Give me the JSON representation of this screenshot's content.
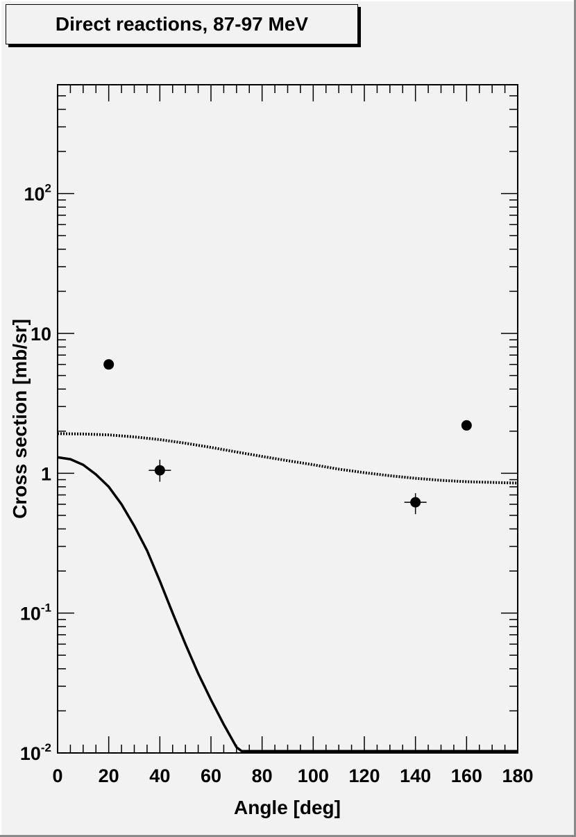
{
  "chart_data": {
    "type": "scatter",
    "title": "Direct reactions, 87-97 MeV",
    "xlabel": "Angle [deg]",
    "ylabel": "Cross section [mb/sr]",
    "xlim": [
      0,
      180
    ],
    "ylim": [
      0.01,
      600
    ],
    "yscale": "log",
    "grid": false,
    "x_ticks": [
      0,
      20,
      40,
      60,
      80,
      100,
      120,
      140,
      160,
      180
    ],
    "x_tick_labels": [
      "0",
      "20",
      "40",
      "60",
      "80",
      "100",
      "120",
      "140",
      "160",
      "180"
    ],
    "y_ticks": [
      {
        "value": 0.01,
        "base": "10",
        "exp": "-2"
      },
      {
        "value": 0.1,
        "base": "10",
        "exp": "-1"
      },
      {
        "value": 1,
        "base": "1",
        "exp": ""
      },
      {
        "value": 10,
        "base": "10",
        "exp": ""
      },
      {
        "value": 100,
        "base": "10",
        "exp": "2"
      }
    ],
    "points": [
      {
        "x": 20,
        "y": 6.0,
        "err_low": 0.0,
        "err_high": 0.0
      },
      {
        "x": 40,
        "y": 1.05,
        "err_low": 0.18,
        "err_high": 0.2
      },
      {
        "x": 140,
        "y": 0.62,
        "err_low": 0.11,
        "err_high": 0.1
      },
      {
        "x": 160,
        "y": 2.2,
        "err_low": 0.0,
        "err_high": 0.0
      }
    ],
    "curves": [
      {
        "style": "dotted",
        "x": [
          0,
          10,
          20,
          30,
          40,
          50,
          60,
          70,
          80,
          90,
          100,
          110,
          120,
          130,
          140,
          150,
          160,
          170,
          180
        ],
        "y": [
          1.92,
          1.91,
          1.88,
          1.82,
          1.74,
          1.64,
          1.53,
          1.42,
          1.32,
          1.23,
          1.15,
          1.07,
          1.01,
          0.96,
          0.92,
          0.89,
          0.87,
          0.86,
          0.85
        ]
      },
      {
        "style": "solid",
        "x": [
          0,
          5,
          10,
          15,
          20,
          25,
          30,
          35,
          40,
          45,
          50,
          55,
          60,
          65,
          70,
          72,
          180
        ],
        "y": [
          1.3,
          1.26,
          1.15,
          0.98,
          0.8,
          0.6,
          0.42,
          0.28,
          0.17,
          0.1,
          0.06,
          0.037,
          0.024,
          0.016,
          0.011,
          0.0103,
          0.0103
        ]
      }
    ]
  }
}
